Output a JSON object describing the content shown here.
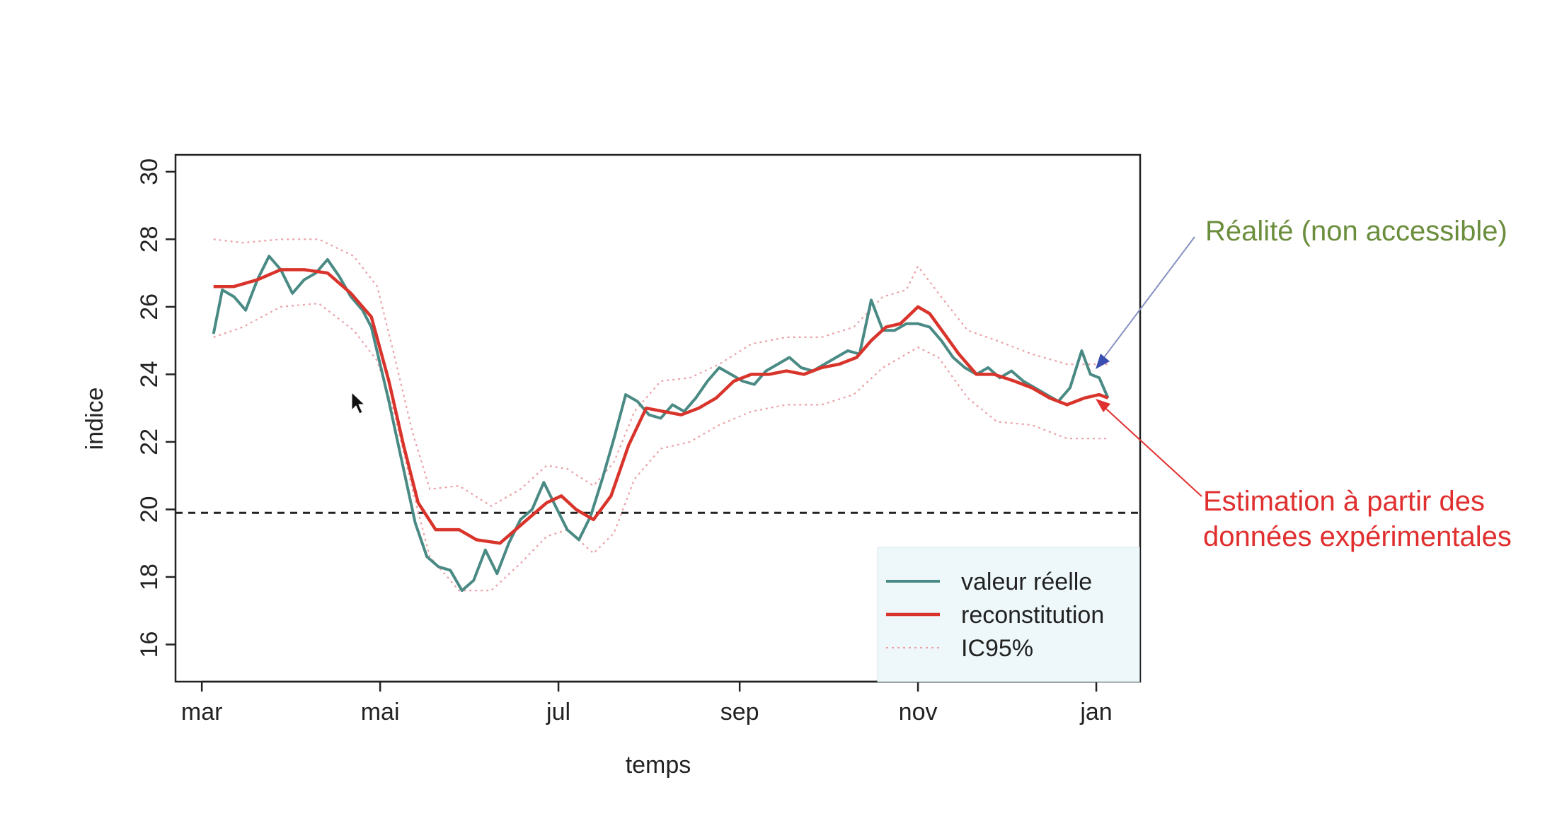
{
  "chart_data": {
    "type": "line",
    "title": "",
    "xlabel": "temps",
    "ylabel": "indice",
    "x_ticks": [
      "mar",
      "mai",
      "jul",
      "sep",
      "nov",
      "jan"
    ],
    "y_ticks": [
      16,
      18,
      20,
      22,
      24,
      26,
      28,
      30
    ],
    "xlim": [
      "2021-02-20",
      "2022-01-16"
    ],
    "ylim": [
      14.9,
      30.5
    ],
    "reference_line": {
      "y": 19.9,
      "style": "dashed"
    },
    "legend_position": "bottom-right",
    "series": [
      {
        "name": "valeur réelle",
        "color": "#4a8a84",
        "points": [
          [
            "2021-03-05",
            25.2
          ],
          [
            "2021-03-08",
            26.5
          ],
          [
            "2021-03-12",
            26.3
          ],
          [
            "2021-03-16",
            25.9
          ],
          [
            "2021-03-20",
            26.8
          ],
          [
            "2021-03-24",
            27.5
          ],
          [
            "2021-03-28",
            27.1
          ],
          [
            "2021-04-01",
            26.4
          ],
          [
            "2021-04-05",
            26.8
          ],
          [
            "2021-04-09",
            27.0
          ],
          [
            "2021-04-13",
            27.4
          ],
          [
            "2021-04-17",
            26.9
          ],
          [
            "2021-04-21",
            26.3
          ],
          [
            "2021-04-25",
            25.9
          ],
          [
            "2021-04-28",
            25.4
          ],
          [
            "2021-05-01",
            24.3
          ],
          [
            "2021-05-04",
            23.2
          ],
          [
            "2021-05-07",
            22.0
          ],
          [
            "2021-05-10",
            20.8
          ],
          [
            "2021-05-13",
            19.6
          ],
          [
            "2021-05-17",
            18.6
          ],
          [
            "2021-05-21",
            18.3
          ],
          [
            "2021-05-25",
            18.2
          ],
          [
            "2021-05-29",
            17.6
          ],
          [
            "2021-06-02",
            17.9
          ],
          [
            "2021-06-06",
            18.8
          ],
          [
            "2021-06-10",
            18.1
          ],
          [
            "2021-06-14",
            19.0
          ],
          [
            "2021-06-18",
            19.7
          ],
          [
            "2021-06-22",
            20.0
          ],
          [
            "2021-06-26",
            20.8
          ],
          [
            "2021-06-30",
            20.1
          ],
          [
            "2021-07-04",
            19.4
          ],
          [
            "2021-07-08",
            19.1
          ],
          [
            "2021-07-12",
            19.8
          ],
          [
            "2021-07-16",
            20.9
          ],
          [
            "2021-07-20",
            22.1
          ],
          [
            "2021-07-24",
            23.4
          ],
          [
            "2021-07-28",
            23.2
          ],
          [
            "2021-08-01",
            22.8
          ],
          [
            "2021-08-05",
            22.7
          ],
          [
            "2021-08-09",
            23.1
          ],
          [
            "2021-08-13",
            22.9
          ],
          [
            "2021-08-17",
            23.3
          ],
          [
            "2021-08-21",
            23.8
          ],
          [
            "2021-08-25",
            24.2
          ],
          [
            "2021-08-29",
            24.0
          ],
          [
            "2021-09-02",
            23.8
          ],
          [
            "2021-09-06",
            23.7
          ],
          [
            "2021-09-10",
            24.1
          ],
          [
            "2021-09-14",
            24.3
          ],
          [
            "2021-09-18",
            24.5
          ],
          [
            "2021-09-22",
            24.2
          ],
          [
            "2021-09-26",
            24.1
          ],
          [
            "2021-09-30",
            24.3
          ],
          [
            "2021-10-04",
            24.5
          ],
          [
            "2021-10-08",
            24.7
          ],
          [
            "2021-10-12",
            24.6
          ],
          [
            "2021-10-16",
            26.2
          ],
          [
            "2021-10-20",
            25.3
          ],
          [
            "2021-10-24",
            25.3
          ],
          [
            "2021-10-28",
            25.5
          ],
          [
            "2021-11-01",
            25.5
          ],
          [
            "2021-11-05",
            25.4
          ],
          [
            "2021-11-09",
            25.0
          ],
          [
            "2021-11-13",
            24.5
          ],
          [
            "2021-11-17",
            24.2
          ],
          [
            "2021-11-21",
            24.0
          ],
          [
            "2021-11-25",
            24.2
          ],
          [
            "2021-11-29",
            23.9
          ],
          [
            "2021-12-03",
            24.1
          ],
          [
            "2021-12-07",
            23.8
          ],
          [
            "2021-12-11",
            23.6
          ],
          [
            "2021-12-15",
            23.4
          ],
          [
            "2021-12-19",
            23.2
          ],
          [
            "2021-12-23",
            23.6
          ],
          [
            "2021-12-27",
            24.7
          ],
          [
            "2021-12-30",
            24.0
          ],
          [
            "2022-01-02",
            23.9
          ],
          [
            "2022-01-05",
            23.3
          ]
        ]
      },
      {
        "name": "reconstitution",
        "color": "#d9342b",
        "points": [
          [
            "2021-03-05",
            26.6
          ],
          [
            "2021-03-12",
            26.6
          ],
          [
            "2021-03-20",
            26.8
          ],
          [
            "2021-03-28",
            27.1
          ],
          [
            "2021-04-05",
            27.1
          ],
          [
            "2021-04-13",
            27.0
          ],
          [
            "2021-04-21",
            26.4
          ],
          [
            "2021-04-28",
            25.7
          ],
          [
            "2021-05-04",
            23.8
          ],
          [
            "2021-05-09",
            21.9
          ],
          [
            "2021-05-14",
            20.2
          ],
          [
            "2021-05-20",
            19.4
          ],
          [
            "2021-05-28",
            19.4
          ],
          [
            "2021-06-03",
            19.1
          ],
          [
            "2021-06-11",
            19.0
          ],
          [
            "2021-06-19",
            19.6
          ],
          [
            "2021-06-27",
            20.2
          ],
          [
            "2021-07-02",
            20.4
          ],
          [
            "2021-07-07",
            20.0
          ],
          [
            "2021-07-13",
            19.7
          ],
          [
            "2021-07-19",
            20.4
          ],
          [
            "2021-07-25",
            21.9
          ],
          [
            "2021-07-31",
            23.0
          ],
          [
            "2021-08-06",
            22.9
          ],
          [
            "2021-08-12",
            22.8
          ],
          [
            "2021-08-18",
            23.0
          ],
          [
            "2021-08-24",
            23.3
          ],
          [
            "2021-08-30",
            23.8
          ],
          [
            "2021-09-05",
            24.0
          ],
          [
            "2021-09-11",
            24.0
          ],
          [
            "2021-09-17",
            24.1
          ],
          [
            "2021-09-23",
            24.0
          ],
          [
            "2021-09-29",
            24.2
          ],
          [
            "2021-10-05",
            24.3
          ],
          [
            "2021-10-11",
            24.5
          ],
          [
            "2021-10-16",
            25.0
          ],
          [
            "2021-10-21",
            25.4
          ],
          [
            "2021-10-26",
            25.5
          ],
          [
            "2021-11-01",
            26.0
          ],
          [
            "2021-11-05",
            25.8
          ],
          [
            "2021-11-10",
            25.2
          ],
          [
            "2021-11-15",
            24.6
          ],
          [
            "2021-11-21",
            24.0
          ],
          [
            "2021-11-27",
            24.0
          ],
          [
            "2021-12-04",
            23.8
          ],
          [
            "2021-12-10",
            23.6
          ],
          [
            "2021-12-16",
            23.3
          ],
          [
            "2021-12-22",
            23.1
          ],
          [
            "2021-12-28",
            23.3
          ],
          [
            "2022-01-02",
            23.4
          ],
          [
            "2022-01-05",
            23.3
          ]
        ]
      },
      {
        "name": "IC95%",
        "color": "#e9a3a8",
        "style": "dotted",
        "upper": [
          [
            "2021-03-05",
            28.0
          ],
          [
            "2021-03-15",
            27.9
          ],
          [
            "2021-03-28",
            28.0
          ],
          [
            "2021-04-10",
            28.0
          ],
          [
            "2021-04-22",
            27.5
          ],
          [
            "2021-04-30",
            26.6
          ],
          [
            "2021-05-06",
            24.5
          ],
          [
            "2021-05-12",
            22.3
          ],
          [
            "2021-05-18",
            20.6
          ],
          [
            "2021-05-28",
            20.7
          ],
          [
            "2021-06-08",
            20.1
          ],
          [
            "2021-06-18",
            20.6
          ],
          [
            "2021-06-27",
            21.3
          ],
          [
            "2021-07-04",
            21.2
          ],
          [
            "2021-07-13",
            20.7
          ],
          [
            "2021-07-20",
            21.4
          ],
          [
            "2021-07-27",
            22.9
          ],
          [
            "2021-08-05",
            23.8
          ],
          [
            "2021-08-15",
            23.9
          ],
          [
            "2021-08-25",
            24.3
          ],
          [
            "2021-09-05",
            24.9
          ],
          [
            "2021-09-17",
            25.1
          ],
          [
            "2021-09-29",
            25.1
          ],
          [
            "2021-10-10",
            25.4
          ],
          [
            "2021-10-20",
            26.3
          ],
          [
            "2021-10-28",
            26.5
          ],
          [
            "2021-11-01",
            27.2
          ],
          [
            "2021-11-08",
            26.4
          ],
          [
            "2021-11-18",
            25.3
          ],
          [
            "2021-11-28",
            25.0
          ],
          [
            "2021-12-10",
            24.6
          ],
          [
            "2021-12-22",
            24.3
          ],
          [
            "2022-01-05",
            24.3
          ]
        ],
        "lower": [
          [
            "2021-03-05",
            25.1
          ],
          [
            "2021-03-15",
            25.4
          ],
          [
            "2021-03-28",
            26.0
          ],
          [
            "2021-04-10",
            26.1
          ],
          [
            "2021-04-22",
            25.3
          ],
          [
            "2021-04-30",
            24.4
          ],
          [
            "2021-05-06",
            22.8
          ],
          [
            "2021-05-12",
            20.6
          ],
          [
            "2021-05-18",
            18.6
          ],
          [
            "2021-05-28",
            17.6
          ],
          [
            "2021-06-08",
            17.6
          ],
          [
            "2021-06-18",
            18.4
          ],
          [
            "2021-06-27",
            19.2
          ],
          [
            "2021-07-04",
            19.4
          ],
          [
            "2021-07-13",
            18.7
          ],
          [
            "2021-07-20",
            19.3
          ],
          [
            "2021-07-27",
            20.9
          ],
          [
            "2021-08-05",
            21.8
          ],
          [
            "2021-08-15",
            22.0
          ],
          [
            "2021-08-25",
            22.5
          ],
          [
            "2021-09-05",
            22.9
          ],
          [
            "2021-09-17",
            23.1
          ],
          [
            "2021-09-29",
            23.1
          ],
          [
            "2021-10-10",
            23.4
          ],
          [
            "2021-10-20",
            24.2
          ],
          [
            "2021-10-28",
            24.6
          ],
          [
            "2021-11-01",
            24.8
          ],
          [
            "2021-11-08",
            24.5
          ],
          [
            "2021-11-18",
            23.3
          ],
          [
            "2021-11-28",
            22.6
          ],
          [
            "2021-12-10",
            22.5
          ],
          [
            "2021-12-22",
            22.1
          ],
          [
            "2022-01-05",
            22.1
          ]
        ]
      }
    ],
    "annotations": [
      {
        "text": "Réalité (non accessible)",
        "color": "#6b8e3d",
        "arrow_color": "#3a4fb0",
        "points_to": "valeur réelle"
      },
      {
        "text": "Estimation à partir des données expérimentales",
        "color": "#e02f2f",
        "arrow_color": "#e02f2f",
        "points_to": "reconstitution"
      }
    ]
  }
}
